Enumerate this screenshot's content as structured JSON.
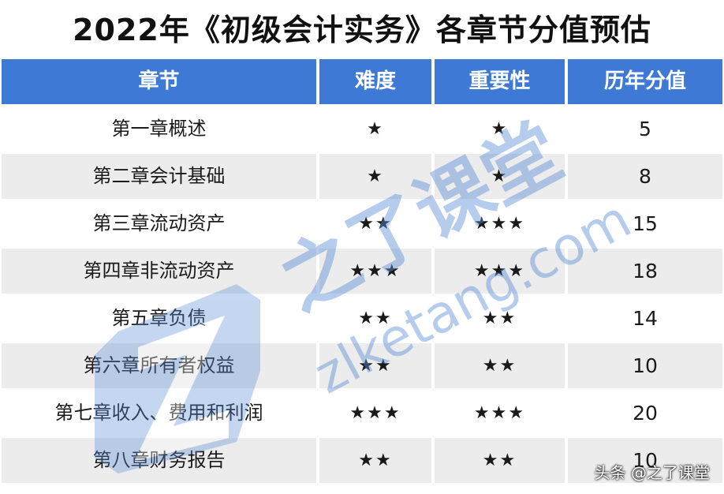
{
  "title": "2022年《初级会计实务》各章节分值预估",
  "headers": [
    "章节",
    "难度",
    "重要性",
    "历年分值"
  ],
  "rows": [
    {
      "chapter": "第一章概述",
      "difficulty": "★",
      "importance": "★",
      "score": "5"
    },
    {
      "chapter": "第二章会计基础",
      "difficulty": "★",
      "importance": "★",
      "score": "8"
    },
    {
      "chapter": "第三章流动资产",
      "difficulty": "★★",
      "importance": "★★★",
      "score": "15"
    },
    {
      "chapter": "第四章非流动资产",
      "difficulty": "★★★",
      "importance": "★★★",
      "score": "18"
    },
    {
      "chapter": "第五章负债",
      "difficulty": "★★",
      "importance": "★★",
      "score": "14"
    },
    {
      "chapter": "第六章所有者权益",
      "difficulty": "★★",
      "importance": "★★",
      "score": "10"
    },
    {
      "chapter": "第七章收入、费用和利润",
      "difficulty": "★★★",
      "importance": "★★★",
      "score": "20"
    },
    {
      "chapter": "第八章财务报告",
      "difficulty": "★★",
      "importance": "★★",
      "score": "10"
    }
  ],
  "watermark": {
    "brand": "之了课堂",
    "domain": "zlketang.com"
  },
  "credit": "头条 @之了课堂",
  "colors": {
    "header_bg": "#3e79d6",
    "row_alt": "#ececec",
    "watermark": "#5c8fd6"
  }
}
